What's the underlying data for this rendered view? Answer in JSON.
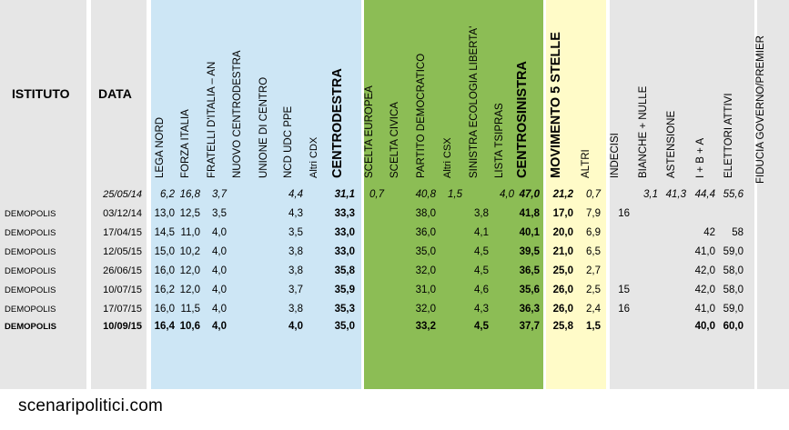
{
  "chart_data": {
    "type": "table",
    "headers": {
      "istituto": "ISTITUTO",
      "data": "DATA",
      "columns": [
        {
          "key": "lega_nord",
          "label": "LEGA NORD",
          "group": "cdx"
        },
        {
          "key": "forza_italia",
          "label": "FORZA ITALIA",
          "group": "cdx"
        },
        {
          "key": "fratelli_italia",
          "label": "FRATELLI D'ITALIA – AN",
          "group": "cdx"
        },
        {
          "key": "nuovo_centrodestra",
          "label": "NUOVO CENTRODESTRA",
          "group": "cdx"
        },
        {
          "key": "unione_centro",
          "label": "UNIONE DI CENTRO",
          "group": "cdx"
        },
        {
          "key": "ncd_udc_ppe",
          "label": "NCD UDC PPE",
          "group": "cdx"
        },
        {
          "key": "altri_cdx",
          "label": "Altri CDX",
          "group": "cdx",
          "small": true
        },
        {
          "key": "centrodestra",
          "label": "CENTRODESTRA",
          "group": "cdx",
          "total": true
        },
        {
          "key": "scelta_europea",
          "label": "SCELTA EUROPEA",
          "group": "csx"
        },
        {
          "key": "scelta_civica",
          "label": "SCELTA CIVICA",
          "group": "csx"
        },
        {
          "key": "pd",
          "label": "PARTITO DEMOCRATICO",
          "group": "csx"
        },
        {
          "key": "altri_csx",
          "label": "Altri CSX",
          "group": "csx",
          "small": true
        },
        {
          "key": "sel",
          "label": "SINISTRA ECOLOGIA LIBERTA'",
          "group": "csx"
        },
        {
          "key": "tsipras",
          "label": "LISTA TSIPRAS",
          "group": "csx"
        },
        {
          "key": "centrosinistra",
          "label": "CENTROSINISTRA",
          "group": "csx",
          "total": true
        },
        {
          "key": "m5s",
          "label": "MOVIMENTO 5 STELLE",
          "group": "m5s",
          "total": true
        },
        {
          "key": "altri",
          "label": "ALTRI",
          "group": "altri"
        },
        {
          "key": "indecisi",
          "label": "INDECISI",
          "group": "none"
        },
        {
          "key": "bianche_nulle",
          "label": "BIANCHE + NULLE",
          "group": "none"
        },
        {
          "key": "astensione",
          "label": "ASTENSIONE",
          "group": "none"
        },
        {
          "key": "ibA",
          "label": "I + B + A",
          "group": "none"
        },
        {
          "key": "elettori_attivi",
          "label": "ELETTORI ATTIVI",
          "group": "none"
        },
        {
          "key": "fiducia",
          "label": "FIDUCIA GOVERNO/PREMIER",
          "group": "none"
        }
      ]
    },
    "rows": [
      {
        "istituto": "",
        "data": "25/05/14",
        "style": "italic",
        "values": {
          "lega_nord": "6,2",
          "forza_italia": "16,8",
          "fratelli_italia": "3,7",
          "ncd_udc_ppe": "4,4",
          "centrodestra": "31,1",
          "scelta_europea": "0,7",
          "pd": "40,8",
          "altri_csx": "1,5",
          "tsipras": "4,0",
          "centrosinistra": "47,0",
          "m5s": "21,2",
          "altri": "0,7",
          "bianche_nulle": "3,1",
          "astensione": "41,3",
          "ibA": "44,4",
          "elettori_attivi": "55,6"
        }
      },
      {
        "istituto": "DEMOPOLIS",
        "data": "03/12/14",
        "style": "normal",
        "values": {
          "lega_nord": "13,0",
          "forza_italia": "12,5",
          "fratelli_italia": "3,5",
          "ncd_udc_ppe": "4,3",
          "centrodestra": "33,3",
          "pd": "38,0",
          "sel": "3,8",
          "centrosinistra": "41,8",
          "m5s": "17,0",
          "altri": "7,9",
          "indecisi": "16"
        }
      },
      {
        "istituto": "DEMOPOLIS",
        "data": "17/04/15",
        "style": "normal",
        "values": {
          "lega_nord": "14,5",
          "forza_italia": "11,0",
          "fratelli_italia": "4,0",
          "ncd_udc_ppe": "3,5",
          "centrodestra": "33,0",
          "pd": "36,0",
          "sel": "4,1",
          "centrosinistra": "40,1",
          "m5s": "20,0",
          "altri": "6,9",
          "ibA": "42",
          "elettori_attivi": "58"
        }
      },
      {
        "istituto": "DEMOPOLIS",
        "data": "12/05/15",
        "style": "normal",
        "values": {
          "lega_nord": "15,0",
          "forza_italia": "10,2",
          "fratelli_italia": "4,0",
          "ncd_udc_ppe": "3,8",
          "centrodestra": "33,0",
          "pd": "35,0",
          "sel": "4,5",
          "centrosinistra": "39,5",
          "m5s": "21,0",
          "altri": "6,5",
          "ibA": "41,0",
          "elettori_attivi": "59,0"
        }
      },
      {
        "istituto": "DEMOPOLIS",
        "data": "26/06/15",
        "style": "normal",
        "values": {
          "lega_nord": "16,0",
          "forza_italia": "12,0",
          "fratelli_italia": "4,0",
          "ncd_udc_ppe": "3,8",
          "centrodestra": "35,8",
          "pd": "32,0",
          "sel": "4,5",
          "centrosinistra": "36,5",
          "m5s": "25,0",
          "altri": "2,7",
          "ibA": "42,0",
          "elettori_attivi": "58,0"
        }
      },
      {
        "istituto": "DEMOPOLIS",
        "data": "10/07/15",
        "style": "normal",
        "values": {
          "lega_nord": "16,2",
          "forza_italia": "12,0",
          "fratelli_italia": "4,0",
          "ncd_udc_ppe": "3,7",
          "centrodestra": "35,9",
          "pd": "31,0",
          "sel": "4,6",
          "centrosinistra": "35,6",
          "m5s": "26,0",
          "altri": "2,5",
          "indecisi": "15",
          "ibA": "42,0",
          "elettori_attivi": "58,0"
        }
      },
      {
        "istituto": "DEMOPOLIS",
        "data": "17/07/15",
        "style": "normal",
        "values": {
          "lega_nord": "16,0",
          "forza_italia": "11,5",
          "fratelli_italia": "4,0",
          "ncd_udc_ppe": "3,8",
          "centrodestra": "35,3",
          "pd": "32,0",
          "sel": "4,3",
          "centrosinistra": "36,3",
          "m5s": "26,0",
          "altri": "2,4",
          "indecisi": "16",
          "ibA": "41,0",
          "elettori_attivi": "59,0"
        }
      },
      {
        "istituto": "DEMOPOLIS",
        "data": "10/09/15",
        "style": "bold",
        "values": {
          "lega_nord": "16,4",
          "forza_italia": "10,6",
          "fratelli_italia": "4,0",
          "ncd_udc_ppe": "4,0",
          "centrodestra": "35,0",
          "pd": "33,2",
          "sel": "4,5",
          "centrosinistra": "37,7",
          "m5s": "25,8",
          "altri": "1,5",
          "ibA": "40,0",
          "elettori_attivi": "60,0"
        }
      }
    ],
    "group_colors": {
      "cdx": "#cde6f5",
      "csx": "#8cbd55",
      "m5s": "#fffbc8",
      "altri": "#fffbc8",
      "frame": "#e6e6e6"
    }
  },
  "footer": {
    "source": "scenaripolitici.com"
  }
}
